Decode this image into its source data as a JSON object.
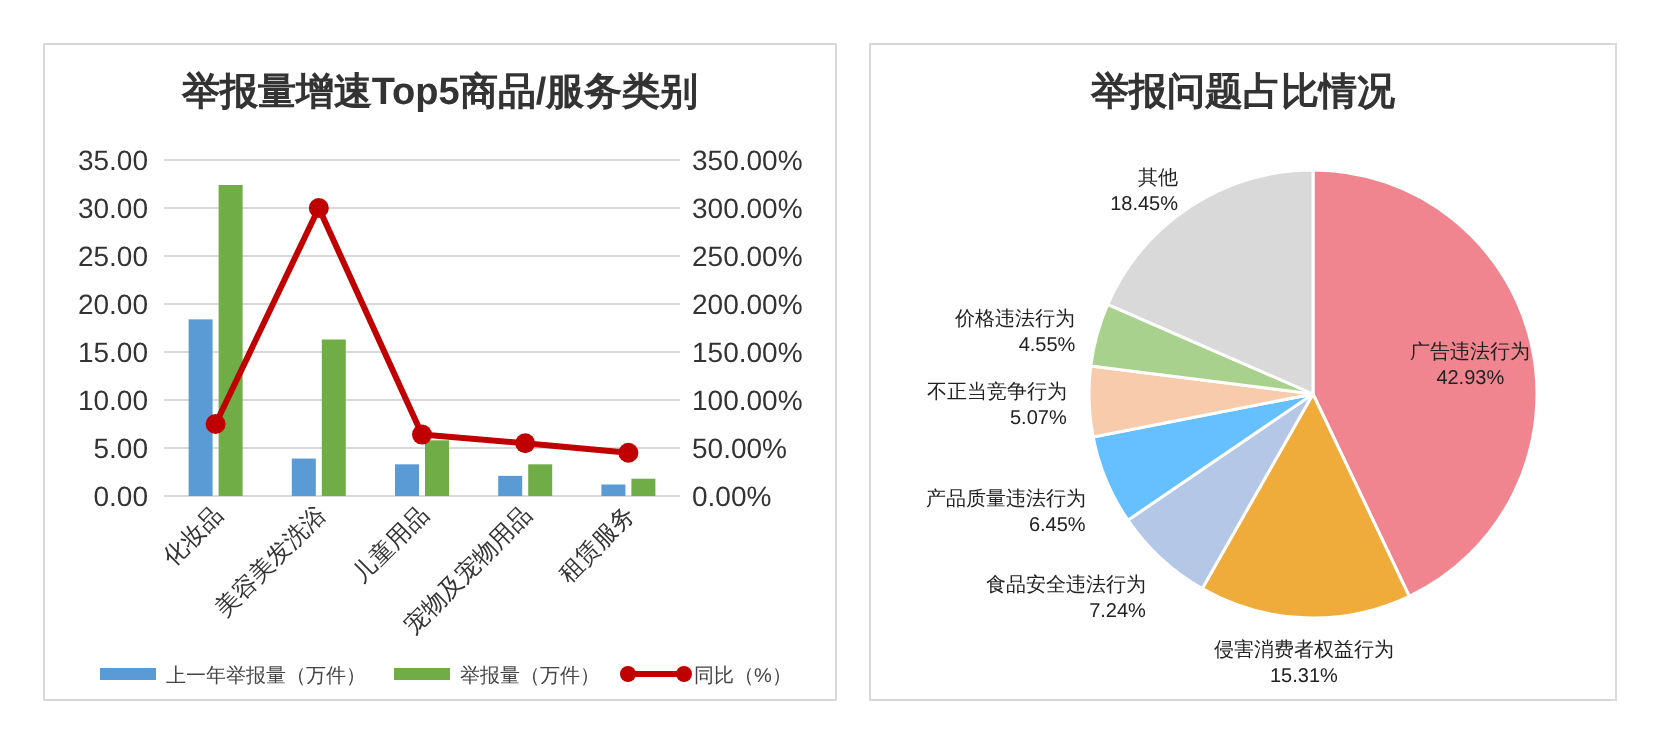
{
  "chart_data": [
    {
      "type": "bar",
      "title": "举报量增速Top5商品/服务类别",
      "categories": [
        "化妆品",
        "美容美发洗浴",
        "儿童用品",
        "宠物及宠物用品",
        "租赁服务"
      ],
      "series": [
        {
          "name": "上一年举报量（万件）",
          "color": "#5b9bd5",
          "values": [
            18.4,
            3.9,
            3.3,
            2.1,
            1.2
          ]
        },
        {
          "name": "举报量（万件）",
          "color": "#70ad47",
          "values": [
            32.4,
            16.3,
            5.8,
            3.3,
            1.8
          ]
        },
        {
          "name": "同比（%）",
          "type": "line",
          "axis": "y2",
          "color": "#c00000",
          "marker": "circle",
          "values": [
            75,
            300,
            64,
            55,
            45
          ]
        }
      ],
      "ylim": [
        0,
        35
      ],
      "yticks": [
        {
          "value": 0,
          "label": "0.00"
        },
        {
          "value": 5,
          "label": "5.00"
        },
        {
          "value": 10,
          "label": "10.00"
        },
        {
          "value": 15,
          "label": "15.00"
        },
        {
          "value": 20,
          "label": "20.00"
        },
        {
          "value": 25,
          "label": "25.00"
        },
        {
          "value": 30,
          "label": "30.00"
        },
        {
          "value": 35,
          "label": "35.00"
        }
      ],
      "y2lim": [
        0,
        350
      ],
      "y2ticks": [
        {
          "value": 0,
          "label": "0.00%"
        },
        {
          "value": 50,
          "label": "50.00%"
        },
        {
          "value": 100,
          "label": "100.00%"
        },
        {
          "value": 150,
          "label": "150.00%"
        },
        {
          "value": 200,
          "label": "200.00%"
        },
        {
          "value": 250,
          "label": "250.00%"
        },
        {
          "value": 300,
          "label": "300.00%"
        },
        {
          "value": 350,
          "label": "350.00%"
        }
      ],
      "grid": "y",
      "legend": "bottom"
    },
    {
      "type": "pie",
      "title": "举报问题占比情况",
      "categories": [
        "广告违法行为",
        "侵害消费者权益行为",
        "食品安全违法行为",
        "产品质量违法行为",
        "不正当竞争行为",
        "价格违法行为",
        "其他"
      ],
      "values": [
        42.93,
        15.31,
        7.24,
        6.45,
        5.07,
        4.55,
        18.45
      ],
      "colors": [
        "#f0858f",
        "#f0ac3a",
        "#b4c7e7",
        "#66bfff",
        "#f8cbad",
        "#a9d18e",
        "#d9d9d9"
      ],
      "value_labels": [
        "42.93%",
        "15.31%",
        "7.24%",
        "6.45%",
        "5.07%",
        "4.55%",
        "18.45%"
      ]
    }
  ]
}
